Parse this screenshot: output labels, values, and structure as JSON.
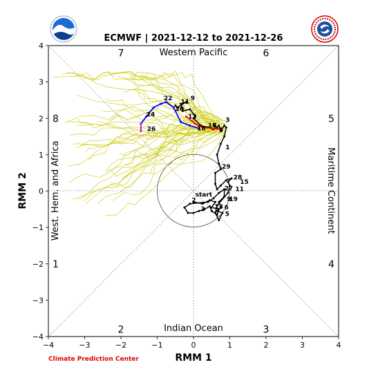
{
  "chart_data": {
    "type": "line",
    "title": "ECMWF | 2021-12-12 to 2021-12-26",
    "xlabel": "RMM 1",
    "ylabel": "RMM 2",
    "xlim": [
      -4,
      4
    ],
    "ylim": [
      -4,
      4
    ],
    "ticks": [
      "−4",
      "−3",
      "−2",
      "−1",
      "0",
      "1",
      "2",
      "3",
      "4"
    ],
    "grid": false,
    "regions": {
      "top": "Western Pacific",
      "bottom": "Indian Ocean",
      "left": "West. Hem. and Africa",
      "right": "Maritime Continent"
    },
    "phases": [
      {
        "label": "1",
        "x": -3.8,
        "y": -2.0
      },
      {
        "label": "2",
        "x": -2.0,
        "y": -3.8
      },
      {
        "label": "3",
        "x": 2.0,
        "y": -3.8
      },
      {
        "label": "4",
        "x": 3.8,
        "y": -2.0
      },
      {
        "label": "5",
        "x": 3.8,
        "y": 2.0
      },
      {
        "label": "6",
        "x": 2.0,
        "y": 3.8
      },
      {
        "label": "7",
        "x": -2.0,
        "y": 3.8
      },
      {
        "label": "8",
        "x": -3.8,
        "y": 2.0
      }
    ],
    "series": [
      {
        "color": "#000000",
        "points": [
          [
            0.0,
            -0.3
          ],
          [
            0.25,
            -0.35
          ],
          [
            0.45,
            -0.25
          ],
          [
            0.6,
            -0.3
          ],
          [
            0.5,
            -0.45
          ],
          [
            0.7,
            -0.5
          ],
          [
            0.65,
            -0.65
          ],
          [
            0.5,
            -0.55
          ],
          [
            0.45,
            -0.42
          ],
          [
            0.3,
            -0.5
          ],
          [
            0.15,
            -0.55
          ],
          [
            0.0,
            -0.6
          ],
          [
            -0.15,
            -0.6
          ],
          [
            -0.25,
            -0.45
          ],
          [
            -0.1,
            -0.35
          ],
          [
            0.4,
            -0.3
          ],
          [
            0.55,
            -0.2
          ],
          [
            0.7,
            -0.05
          ],
          [
            0.85,
            0.05
          ],
          [
            0.85,
            -0.15
          ],
          [
            0.7,
            -0.3
          ],
          [
            0.75,
            -0.45
          ],
          [
            0.65,
            -0.55
          ],
          [
            0.8,
            -0.6
          ],
          [
            0.7,
            -0.8
          ],
          [
            0.6,
            -0.6
          ],
          [
            0.65,
            -0.4
          ],
          [
            0.95,
            -0.05
          ],
          [
            1.0,
            0.15
          ],
          [
            0.95,
            0.25
          ],
          [
            1.05,
            0.35
          ],
          [
            0.9,
            0.3
          ],
          [
            0.75,
            0.15
          ],
          [
            0.65,
            0.05
          ],
          [
            0.6,
            0.2
          ],
          [
            0.6,
            0.5
          ],
          [
            0.75,
            0.6
          ],
          [
            0.7,
            0.75
          ],
          [
            0.65,
            1.0
          ],
          [
            0.75,
            1.3
          ],
          [
            0.85,
            1.5
          ],
          [
            0.9,
            1.75
          ],
          [
            0.85,
            1.8
          ],
          [
            0.75,
            1.65
          ],
          [
            0.7,
            1.8
          ],
          [
            0.65,
            1.75
          ],
          [
            0.55,
            1.7
          ],
          [
            0.4,
            1.75
          ],
          [
            0.2,
            1.8
          ],
          [
            0.0,
            2.0
          ],
          [
            0.05,
            2.05
          ],
          [
            -0.1,
            2.25
          ],
          [
            -0.3,
            2.2
          ],
          [
            -0.35,
            2.4
          ],
          [
            -0.2,
            2.45
          ],
          [
            -0.45,
            2.3
          ],
          [
            -0.5,
            2.35
          ]
        ]
      },
      {
        "color": "#ff0000",
        "points": [
          [
            -0.2,
            2.05
          ],
          [
            0.05,
            1.85
          ],
          [
            0.25,
            1.75
          ],
          [
            0.5,
            1.72
          ],
          [
            0.75,
            1.7
          ]
        ]
      },
      {
        "color": "#0000ff",
        "points": [
          [
            0.15,
            1.72
          ],
          [
            -0.1,
            1.8
          ],
          [
            -0.35,
            1.9
          ],
          [
            -0.55,
            2.3
          ],
          [
            -0.75,
            2.45
          ],
          [
            -0.9,
            2.4
          ],
          [
            -1.1,
            2.3
          ],
          [
            -1.3,
            2.05
          ],
          [
            -1.45,
            1.85
          ]
        ]
      },
      {
        "color": "#e000e0",
        "points": [
          [
            -1.45,
            1.85
          ],
          [
            -1.45,
            1.65
          ]
        ]
      }
    ],
    "day_labels": [
      {
        "text": "start",
        "x": 0.05,
        "y": -0.15
      },
      {
        "text": "2",
        "x": -0.05,
        "y": -0.3
      },
      {
        "text": "3",
        "x": 0.2,
        "y": -0.55
      },
      {
        "text": "23",
        "x": 0.58,
        "y": -0.48
      },
      {
        "text": "5",
        "x": 0.87,
        "y": -0.68
      },
      {
        "text": "6",
        "x": 0.85,
        "y": -0.5
      },
      {
        "text": "9",
        "x": 0.92,
        "y": -0.28
      },
      {
        "text": "19",
        "x": 0.98,
        "y": -0.28
      },
      {
        "text": "27",
        "x": 0.85,
        "y": 0.02
      },
      {
        "text": "11",
        "x": 1.15,
        "y": 0.0
      },
      {
        "text": "15",
        "x": 1.28,
        "y": 0.2
      },
      {
        "text": "28",
        "x": 1.1,
        "y": 0.32
      },
      {
        "text": "29",
        "x": 0.78,
        "y": 0.62
      },
      {
        "text": "1",
        "x": 0.88,
        "y": 1.15
      },
      {
        "text": "3",
        "x": 0.88,
        "y": 1.9
      },
      {
        "text": "5",
        "x": 0.7,
        "y": 1.62
      },
      {
        "text": "7",
        "x": 0.52,
        "y": 1.75
      },
      {
        "text": "16",
        "x": 0.4,
        "y": 1.75
      },
      {
        "text": "18",
        "x": 0.1,
        "y": 1.67
      },
      {
        "text": "12",
        "x": -0.15,
        "y": 2.0
      },
      {
        "text": "9",
        "x": -0.08,
        "y": 2.5
      },
      {
        "text": "11",
        "x": -0.35,
        "y": 2.4
      },
      {
        "text": "20",
        "x": -0.5,
        "y": 2.2
      },
      {
        "text": "22",
        "x": -0.82,
        "y": 2.5
      },
      {
        "text": "24",
        "x": -1.3,
        "y": 2.05
      },
      {
        "text": "26",
        "x": -1.28,
        "y": 1.65
      }
    ]
  },
  "footer": {
    "credit": "Climate Prediction Center"
  },
  "logos": {
    "left": "noaa-logo",
    "right": "nws-logo"
  },
  "colors": {
    "ensemble": "#c8c800",
    "observed": "#000000",
    "week1": "#ff0000",
    "week2": "#0000ff",
    "week3": "#e000e0"
  }
}
